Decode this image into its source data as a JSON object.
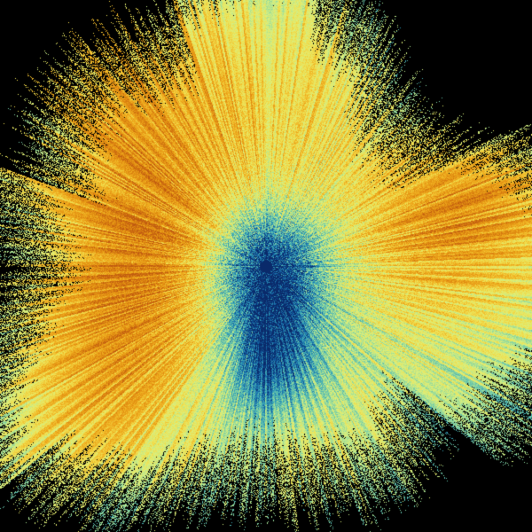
{
  "background": "#000000",
  "colormap": [
    "#0a2a6a",
    "#1466a8",
    "#3aa8b8",
    "#8ad6a0",
    "#d8f080",
    "#f0e050",
    "#f0b020",
    "#e08a10",
    "#c05a10"
  ]
}
